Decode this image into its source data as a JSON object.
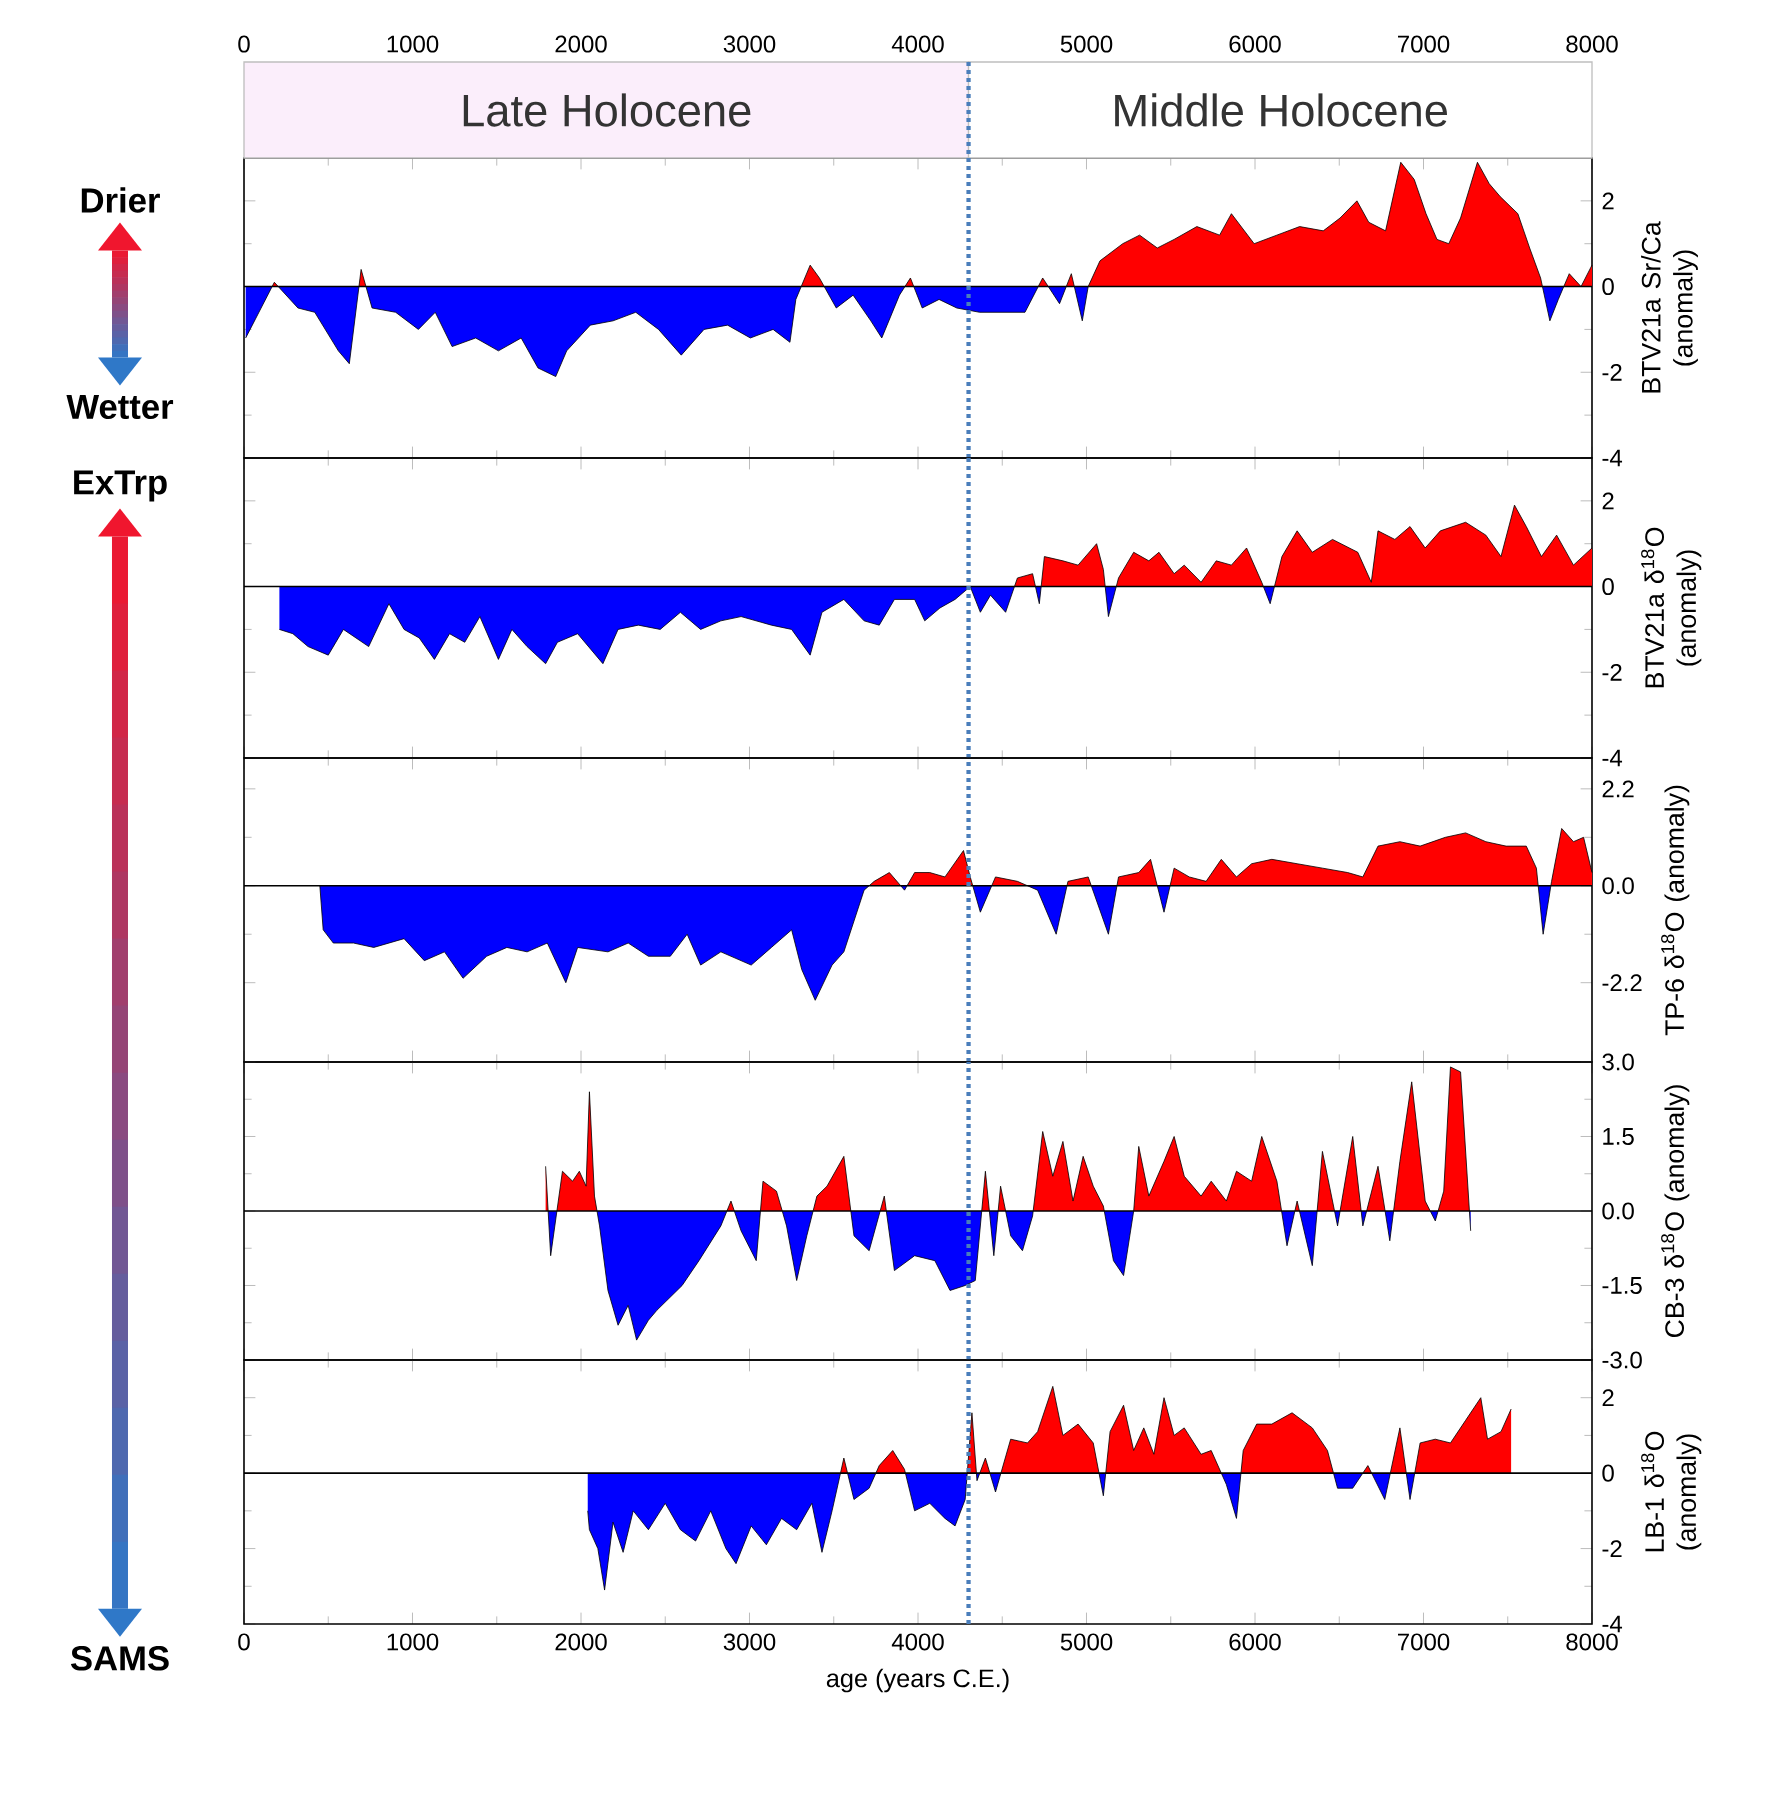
{
  "chart_data": [
    {
      "type": "area",
      "ylabel": "BTV21a Sr/Ca (anomaly)",
      "annotations": [
        "Drier",
        "Wetter",
        "Late Holocene",
        "Middle Holocene"
      ],
      "xlim": [
        0,
        8000
      ],
      "x2lim": [
        0,
        8000
      ],
      "x2ticks": [
        0,
        1000,
        2000,
        3000,
        4000,
        5000,
        6000,
        7000,
        8000
      ],
      "ylim": [
        -4,
        3
      ],
      "yticks": [
        -4,
        -2,
        0,
        2
      ],
      "ref_lines": [
        {
          "axis": "y",
          "value": 0,
          "color": "#000000"
        },
        {
          "axis": "x",
          "value": 4300,
          "color": "#4a7ebb",
          "line_style": "dotted"
        }
      ],
      "x": [
        10,
        180,
        320,
        420,
        560,
        625,
        695,
        760,
        900,
        1035,
        1135,
        1235,
        1375,
        1510,
        1645,
        1745,
        1850,
        1915,
        2055,
        2190,
        2325,
        2460,
        2595,
        2730,
        2870,
        3005,
        3140,
        3240,
        3275,
        3360,
        3415,
        3515,
        3615,
        3720,
        3785,
        3890,
        3955,
        4025,
        4125,
        4230,
        4365,
        4500,
        4635,
        4740,
        4840,
        4910,
        4975,
        5010,
        5080,
        5215,
        5315,
        5420,
        5520,
        5655,
        5790,
        5860,
        5995,
        6130,
        6265,
        6405,
        6505,
        6605,
        6675,
        6775,
        6865,
        6945,
        7015,
        7080,
        7150,
        7220,
        7320,
        7390,
        7455,
        7560,
        7630,
        7695,
        7750,
        7800,
        7865,
        7935,
        8000
      ],
      "series": [
        {
          "values": [
            -1.2,
            0.1,
            -0.5,
            -0.6,
            -1.5,
            -1.8,
            0.4,
            -0.5,
            -0.6,
            -1.0,
            -0.6,
            -1.4,
            -1.2,
            -1.5,
            -1.2,
            -1.9,
            -2.1,
            -1.5,
            -0.9,
            -0.8,
            -0.6,
            -1.0,
            -1.6,
            -1.0,
            -0.9,
            -1.2,
            -1.0,
            -1.3,
            -0.3,
            0.5,
            0.2,
            -0.5,
            -0.2,
            -0.8,
            -1.2,
            -0.2,
            0.2,
            -0.5,
            -0.3,
            -0.5,
            -0.6,
            -0.6,
            -0.6,
            0.2,
            -0.4,
            0.3,
            -0.8,
            0.0,
            0.6,
            1.0,
            1.2,
            0.9,
            1.1,
            1.4,
            1.2,
            1.7,
            1.0,
            1.2,
            1.4,
            1.3,
            1.6,
            2.0,
            1.5,
            1.3,
            2.9,
            2.5,
            1.7,
            1.1,
            1.0,
            1.6,
            2.9,
            2.4,
            2.1,
            1.7,
            0.9,
            0.2,
            -0.8,
            -0.3,
            0.3,
            0.0,
            0.5
          ],
          "colors": [
            "#0000ff",
            "#ff0000",
            "#0000ff",
            "#0000ff",
            "#0000ff",
            "#0000ff",
            "#ff0000",
            "#0000ff",
            "#0000ff",
            "#0000ff",
            "#0000ff",
            "#0000ff",
            "#0000ff",
            "#0000ff",
            "#0000ff",
            "#0000ff",
            "#0000ff",
            "#0000ff",
            "#0000ff",
            "#0000ff",
            "#0000ff",
            "#0000ff",
            "#0000ff",
            "#0000ff",
            "#0000ff",
            "#0000ff",
            "#0000ff",
            "#0000ff",
            "#0000ff",
            "#ff0000",
            "#ff0000",
            "#0000ff",
            "#0000ff",
            "#0000ff",
            "#0000ff",
            "#0000ff",
            "#ff0000",
            "#0000ff",
            "#0000ff",
            "#0000ff",
            "#0000ff",
            "#0000ff",
            "#0000ff",
            "#ff0000",
            "#0000ff",
            "#ff0000",
            "#0000ff",
            "#ff0000",
            "#ff0000",
            "#ff0000",
            "#ff0000",
            "#ff0000",
            "#ff0000",
            "#ff0000",
            "#ff0000",
            "#ff0000",
            "#ff0000",
            "#ff0000",
            "#ff0000",
            "#ff0000",
            "#ff0000",
            "#ff0000",
            "#ff0000",
            "#ff0000",
            "#ff0000",
            "#ff0000",
            "#ff0000",
            "#ff0000",
            "#ff0000",
            "#ff0000",
            "#ff0000",
            "#ff0000",
            "#ff0000",
            "#ff0000",
            "#ff0000",
            "#ff0000",
            "#0000ff",
            "#0000ff",
            "#ff0000",
            "#ff0000",
            "#ff0000"
          ]
        }
      ]
    },
    {
      "type": "area",
      "ylabel": "BTV21a δ$^{18}$O (anomaly)",
      "annotations": [
        "ExTrp"
      ],
      "xlim": [
        0,
        8000
      ],
      "xticks": [
        0,
        1000,
        2000,
        3000,
        4000,
        5000,
        6000,
        7000,
        8000
      ],
      "tick_labels": "y",
      "ylim": [
        -4,
        3
      ],
      "yticks": [
        -4,
        -2,
        0,
        2
      ],
      "ref_lines": [
        {
          "axis": "y",
          "value": 0,
          "color": "#000000"
        },
        {
          "axis": "x",
          "value": 4300,
          "color": "#4a7ebb",
          "line_style": "dotted"
        }
      ],
      "x": [
        210,
        290,
        380,
        500,
        590,
        740,
        860,
        950,
        1040,
        1130,
        1220,
        1310,
        1400,
        1510,
        1590,
        1680,
        1790,
        1860,
        1980,
        2130,
        2220,
        2340,
        2470,
        2590,
        2710,
        2830,
        2950,
        3130,
        3250,
        3360,
        3430,
        3560,
        3680,
        3770,
        3860,
        3980,
        4040,
        4130,
        4220,
        4310,
        4370,
        4430,
        4520,
        4590,
        4680,
        4720,
        4750,
        4860,
        4950,
        5060,
        5100,
        5130,
        5190,
        5280,
        5370,
        5430,
        5520,
        5580,
        5680,
        5770,
        5860,
        5950,
        6040,
        6090,
        6160,
        6250,
        6340,
        6460,
        6610,
        6690,
        6730,
        6830,
        6920,
        7010,
        7100,
        7250,
        7370,
        7460,
        7540,
        7610,
        7700,
        7790,
        7890,
        8000
      ],
      "series": [
        {
          "values": [
            -1.0,
            -1.1,
            -1.4,
            -1.6,
            -1.0,
            -1.4,
            -0.4,
            -1.0,
            -1.2,
            -1.7,
            -1.1,
            -1.3,
            -0.7,
            -1.7,
            -1.0,
            -1.4,
            -1.8,
            -1.3,
            -1.1,
            -1.8,
            -1.0,
            -0.9,
            -1.0,
            -0.6,
            -1.0,
            -0.8,
            -0.7,
            -0.9,
            -1.0,
            -1.6,
            -0.6,
            -0.3,
            -0.8,
            -0.9,
            -0.3,
            -0.3,
            -0.8,
            -0.5,
            -0.3,
            0.0,
            -0.6,
            -0.2,
            -0.6,
            0.2,
            0.3,
            -0.4,
            0.7,
            0.6,
            0.5,
            1.0,
            0.4,
            -0.7,
            0.2,
            0.8,
            0.6,
            0.8,
            0.3,
            0.5,
            0.1,
            0.6,
            0.5,
            0.9,
            0.1,
            -0.4,
            0.7,
            1.3,
            0.8,
            1.1,
            0.8,
            0.1,
            1.3,
            1.1,
            1.4,
            0.9,
            1.3,
            1.5,
            1.2,
            0.7,
            1.9,
            1.4,
            0.7,
            1.2,
            0.5,
            0.9
          ],
          "colors": [
            "#0000ff",
            "#0000ff",
            "#0000ff",
            "#0000ff",
            "#0000ff",
            "#0000ff",
            "#0000ff",
            "#0000ff",
            "#0000ff",
            "#0000ff",
            "#0000ff",
            "#0000ff",
            "#0000ff",
            "#0000ff",
            "#0000ff",
            "#0000ff",
            "#0000ff",
            "#0000ff",
            "#0000ff",
            "#0000ff",
            "#0000ff",
            "#0000ff",
            "#0000ff",
            "#0000ff",
            "#0000ff",
            "#0000ff",
            "#0000ff",
            "#0000ff",
            "#0000ff",
            "#0000ff",
            "#0000ff",
            "#0000ff",
            "#0000ff",
            "#0000ff",
            "#0000ff",
            "#0000ff",
            "#0000ff",
            "#0000ff",
            "#0000ff",
            "#ff0000",
            "#0000ff",
            "#0000ff",
            "#0000ff",
            "#ff0000",
            "#ff0000",
            "#0000ff",
            "#ff0000",
            "#ff0000",
            "#ff0000",
            "#ff0000",
            "#ff0000",
            "#0000ff",
            "#ff0000",
            "#ff0000",
            "#ff0000",
            "#ff0000",
            "#ff0000",
            "#ff0000",
            "#ff0000",
            "#ff0000",
            "#ff0000",
            "#ff0000",
            "#ff0000",
            "#0000ff",
            "#ff0000",
            "#ff0000",
            "#ff0000",
            "#ff0000",
            "#ff0000",
            "#ff0000",
            "#ff0000",
            "#ff0000",
            "#ff0000",
            "#ff0000",
            "#ff0000",
            "#ff0000",
            "#ff0000",
            "#ff0000",
            "#ff0000",
            "#ff0000",
            "#ff0000",
            "#ff0000",
            "#ff0000",
            "#ff0000"
          ]
        }
      ]
    },
    {
      "type": "area",
      "ylabel": "TP-6 δ$^{18}$O (anomaly)",
      "xlim": [
        0,
        8000
      ],
      "xticks": [
        0,
        1000,
        2000,
        3000,
        4000,
        5000,
        6000,
        7000,
        8000
      ],
      "tick_labels": "y",
      "ylim": [
        -4,
        2.9
      ],
      "yticks": [
        {
          "value": -2.2,
          "label": "-2.2"
        },
        {
          "value": 0,
          "label": "0.0"
        },
        {
          "value": 2.2,
          "label": "2.2"
        }
      ],
      "ref_lines": [
        {
          "axis": "y",
          "value": 0,
          "color": "#000000"
        },
        {
          "axis": "x",
          "value": 4300,
          "color": "#4a7ebb",
          "line_style": "dotted"
        }
      ],
      "x": [
        450,
        470,
        530,
        650,
        770,
        950,
        1070,
        1190,
        1300,
        1440,
        1560,
        1680,
        1800,
        1910,
        1980,
        2160,
        2280,
        2400,
        2530,
        2630,
        2710,
        2830,
        3010,
        3130,
        3250,
        3310,
        3390,
        3490,
        3560,
        3620,
        3680,
        3740,
        3830,
        3920,
        3980,
        4070,
        4160,
        4270,
        4310,
        4370,
        4460,
        4590,
        4710,
        4820,
        4890,
        5010,
        5130,
        5190,
        5310,
        5380,
        5460,
        5520,
        5610,
        5710,
        5800,
        5890,
        5980,
        6100,
        6250,
        6400,
        6550,
        6640,
        6730,
        6860,
        6980,
        7130,
        7250,
        7370,
        7490,
        7610,
        7670,
        7710,
        7760,
        7820,
        7890,
        7950,
        8000
      ],
      "series": [
        {
          "values": [
            0.0,
            -1.0,
            -1.3,
            -1.3,
            -1.4,
            -1.2,
            -1.7,
            -1.5,
            -2.1,
            -1.6,
            -1.4,
            -1.5,
            -1.3,
            -2.2,
            -1.4,
            -1.5,
            -1.3,
            -1.6,
            -1.6,
            -1.1,
            -1.8,
            -1.5,
            -1.8,
            -1.4,
            -1.0,
            -1.9,
            -2.6,
            -1.8,
            -1.5,
            -0.8,
            -0.1,
            0.1,
            0.3,
            -0.1,
            0.3,
            0.3,
            0.2,
            0.8,
            0.2,
            -0.6,
            0.2,
            0.1,
            -0.1,
            -1.1,
            0.1,
            0.2,
            -1.1,
            0.2,
            0.3,
            0.6,
            -0.6,
            0.4,
            0.2,
            0.1,
            0.6,
            0.2,
            0.5,
            0.6,
            0.5,
            0.4,
            0.3,
            0.2,
            0.9,
            1.0,
            0.9,
            1.1,
            1.2,
            1.0,
            0.9,
            0.9,
            0.4,
            -1.1,
            0.1,
            1.3,
            1.0,
            1.1,
            0.3
          ],
          "colors": [
            "#ff0000",
            "#0000ff",
            "#0000ff",
            "#0000ff",
            "#0000ff",
            "#0000ff",
            "#0000ff",
            "#0000ff",
            "#0000ff",
            "#0000ff",
            "#0000ff",
            "#0000ff",
            "#0000ff",
            "#0000ff",
            "#0000ff",
            "#0000ff",
            "#0000ff",
            "#0000ff",
            "#0000ff",
            "#0000ff",
            "#0000ff",
            "#0000ff",
            "#0000ff",
            "#0000ff",
            "#0000ff",
            "#0000ff",
            "#0000ff",
            "#0000ff",
            "#0000ff",
            "#0000ff",
            "#0000ff",
            "#ff0000",
            "#ff0000",
            "#0000ff",
            "#ff0000",
            "#ff0000",
            "#ff0000",
            "#ff0000",
            "#ff0000",
            "#0000ff",
            "#ff0000",
            "#ff0000",
            "#0000ff",
            "#0000ff",
            "#ff0000",
            "#ff0000",
            "#0000ff",
            "#ff0000",
            "#ff0000",
            "#ff0000",
            "#0000ff",
            "#ff0000",
            "#ff0000",
            "#ff0000",
            "#ff0000",
            "#ff0000",
            "#ff0000",
            "#ff0000",
            "#ff0000",
            "#ff0000",
            "#ff0000",
            "#ff0000",
            "#ff0000",
            "#ff0000",
            "#ff0000",
            "#ff0000",
            "#ff0000",
            "#ff0000",
            "#ff0000",
            "#ff0000",
            "#ff0000",
            "#0000ff",
            "#ff0000",
            "#ff0000",
            "#ff0000",
            "#ff0000",
            "#ff0000"
          ]
        }
      ]
    },
    {
      "type": "area",
      "ylabel": "CB-3 δ$^{18}$O (anomaly)",
      "xlim": [
        0,
        8000
      ],
      "xticks": [
        0,
        1000,
        2000,
        3000,
        4000,
        5000,
        6000,
        7000,
        8000
      ],
      "tick_labels": "y",
      "ylim": [
        -3,
        3
      ],
      "yticks": [
        {
          "value": -3,
          "label": "-3.0"
        },
        {
          "value": -1.5,
          "label": "-1.5"
        },
        {
          "value": 0,
          "label": "0.0"
        },
        {
          "value": 1.5,
          "label": "1.5"
        },
        {
          "value": 3,
          "label": "3.0"
        }
      ],
      "ref_lines": [
        {
          "axis": "y",
          "value": 0,
          "color": "#000000"
        },
        {
          "axis": "x",
          "value": 4300,
          "color": "#4a7ebb",
          "line_style": "dotted"
        }
      ],
      "x": [
        1790,
        1820,
        1890,
        1950,
        1990,
        2030,
        2050,
        2080,
        2110,
        2160,
        2220,
        2280,
        2330,
        2400,
        2450,
        2600,
        2700,
        2830,
        2890,
        2950,
        3040,
        3080,
        3160,
        3220,
        3280,
        3340,
        3400,
        3460,
        3560,
        3620,
        3710,
        3800,
        3860,
        3980,
        4100,
        4190,
        4280,
        4340,
        4400,
        4450,
        4490,
        4550,
        4620,
        4680,
        4740,
        4800,
        4860,
        4920,
        4980,
        5040,
        5100,
        5160,
        5220,
        5280,
        5310,
        5370,
        5460,
        5520,
        5580,
        5680,
        5740,
        5830,
        5890,
        5980,
        6040,
        6130,
        6190,
        6250,
        6340,
        6400,
        6490,
        6580,
        6640,
        6730,
        6800,
        6860,
        6930,
        7010,
        7070,
        7120,
        7160,
        7220,
        7280
      ],
      "series": [
        {
          "values": [
            0.9,
            -0.9,
            0.8,
            0.6,
            0.8,
            0.5,
            2.4,
            0.3,
            -0.3,
            -1.6,
            -2.3,
            -1.9,
            -2.6,
            -2.2,
            -2.0,
            -1.5,
            -1.0,
            -0.3,
            0.2,
            -0.4,
            -1.0,
            0.6,
            0.4,
            -0.3,
            -1.4,
            -0.5,
            0.3,
            0.5,
            1.1,
            -0.5,
            -0.8,
            0.3,
            -1.2,
            -0.9,
            -1.0,
            -1.6,
            -1.5,
            -1.4,
            0.8,
            -0.9,
            0.5,
            -0.5,
            -0.8,
            -0.1,
            1.6,
            0.7,
            1.4,
            0.2,
            1.1,
            0.5,
            0.1,
            -1.0,
            -1.3,
            0.0,
            1.3,
            0.3,
            1.0,
            1.5,
            0.7,
            0.3,
            0.6,
            0.2,
            0.8,
            0.6,
            1.5,
            0.6,
            -0.7,
            0.2,
            -1.1,
            1.2,
            -0.3,
            1.5,
            -0.3,
            0.9,
            -0.6,
            1.0,
            2.6,
            0.2,
            -0.2,
            0.4,
            2.9,
            2.8,
            -0.4
          ],
          "colors": [
            "#ff0000",
            "#0000ff",
            "#ff0000",
            "#ff0000",
            "#ff0000",
            "#ff0000",
            "#ff0000",
            "#ff0000",
            "#0000ff",
            "#0000ff",
            "#0000ff",
            "#0000ff",
            "#0000ff",
            "#0000ff",
            "#0000ff",
            "#0000ff",
            "#0000ff",
            "#0000ff",
            "#ff0000",
            "#0000ff",
            "#0000ff",
            "#ff0000",
            "#ff0000",
            "#0000ff",
            "#0000ff",
            "#0000ff",
            "#ff0000",
            "#ff0000",
            "#ff0000",
            "#0000ff",
            "#0000ff",
            "#ff0000",
            "#0000ff",
            "#0000ff",
            "#0000ff",
            "#0000ff",
            "#0000ff",
            "#0000ff",
            "#ff0000",
            "#0000ff",
            "#ff0000",
            "#0000ff",
            "#0000ff",
            "#0000ff",
            "#ff0000",
            "#ff0000",
            "#ff0000",
            "#ff0000",
            "#ff0000",
            "#ff0000",
            "#ff0000",
            "#0000ff",
            "#0000ff",
            "#ff0000",
            "#ff0000",
            "#ff0000",
            "#ff0000",
            "#ff0000",
            "#ff0000",
            "#ff0000",
            "#ff0000",
            "#ff0000",
            "#ff0000",
            "#ff0000",
            "#ff0000",
            "#ff0000",
            "#0000ff",
            "#ff0000",
            "#0000ff",
            "#ff0000",
            "#0000ff",
            "#ff0000",
            "#0000ff",
            "#ff0000",
            "#0000ff",
            "#ff0000",
            "#ff0000",
            "#ff0000",
            "#0000ff",
            "#ff0000",
            "#ff0000",
            "#ff0000",
            "#0000ff"
          ]
        }
      ]
    },
    {
      "type": "area",
      "ylabel": "LB-1 δ$^{18}$O (anomaly)",
      "xlabel": "age (years C.E.)",
      "annotations": [
        "SAMS"
      ],
      "xlim": [
        0,
        8000
      ],
      "xticks": [
        0,
        1000,
        2000,
        3000,
        4000,
        5000,
        6000,
        7000,
        8000
      ],
      "ylim": [
        -4,
        3
      ],
      "yticks": [
        -4,
        -2,
        0,
        2
      ],
      "ref_lines": [
        {
          "axis": "y",
          "value": 0,
          "color": "#000000"
        },
        {
          "axis": "x",
          "value": 4300,
          "color": "#4a7ebb",
          "line_style": "dotted"
        }
      ],
      "x": [
        2040,
        2050,
        2100,
        2140,
        2190,
        2250,
        2310,
        2400,
        2500,
        2590,
        2680,
        2770,
        2860,
        2920,
        3010,
        3100,
        3190,
        3280,
        3370,
        3430,
        3490,
        3560,
        3620,
        3710,
        3770,
        3850,
        3920,
        3980,
        4070,
        4160,
        4220,
        4280,
        4320,
        4350,
        4400,
        4460,
        4550,
        4650,
        4710,
        4800,
        4860,
        4950,
        5040,
        5100,
        5140,
        5220,
        5280,
        5340,
        5400,
        5460,
        5520,
        5580,
        5680,
        5740,
        5830,
        5890,
        5930,
        6010,
        6100,
        6220,
        6340,
        6430,
        6490,
        6580,
        6670,
        6770,
        6860,
        6920,
        6980,
        7070,
        7160,
        7250,
        7340,
        7380,
        7460,
        7520
      ],
      "series": [
        {
          "values": [
            -1.0,
            -1.5,
            -2.0,
            -3.1,
            -1.3,
            -2.1,
            -1.0,
            -1.5,
            -0.8,
            -1.5,
            -1.8,
            -1.0,
            -2.0,
            -2.4,
            -1.4,
            -1.9,
            -1.2,
            -1.5,
            -0.8,
            -2.1,
            -1.0,
            0.4,
            -0.7,
            -0.4,
            0.2,
            0.6,
            0.1,
            -1.0,
            -0.8,
            -1.2,
            -1.4,
            -0.7,
            1.6,
            -0.2,
            0.4,
            -0.5,
            0.9,
            0.8,
            1.1,
            2.3,
            1.0,
            1.3,
            0.8,
            -0.6,
            1.1,
            1.8,
            0.6,
            1.2,
            0.5,
            2.0,
            1.0,
            1.2,
            0.5,
            0.6,
            -0.3,
            -1.2,
            0.6,
            1.3,
            1.3,
            1.6,
            1.2,
            0.6,
            -0.4,
            -0.4,
            0.2,
            -0.7,
            1.2,
            -0.7,
            0.8,
            0.9,
            0.8,
            1.4,
            2.0,
            0.9,
            1.1,
            1.7
          ],
          "colors": [
            "#0000ff",
            "#0000ff",
            "#0000ff",
            "#0000ff",
            "#0000ff",
            "#0000ff",
            "#0000ff",
            "#0000ff",
            "#0000ff",
            "#0000ff",
            "#0000ff",
            "#0000ff",
            "#0000ff",
            "#0000ff",
            "#0000ff",
            "#0000ff",
            "#0000ff",
            "#0000ff",
            "#0000ff",
            "#0000ff",
            "#0000ff",
            "#ff0000",
            "#0000ff",
            "#0000ff",
            "#ff0000",
            "#ff0000",
            "#ff0000",
            "#0000ff",
            "#0000ff",
            "#0000ff",
            "#0000ff",
            "#0000ff",
            "#ff0000",
            "#0000ff",
            "#ff0000",
            "#0000ff",
            "#ff0000",
            "#ff0000",
            "#ff0000",
            "#ff0000",
            "#ff0000",
            "#ff0000",
            "#ff0000",
            "#0000ff",
            "#ff0000",
            "#ff0000",
            "#ff0000",
            "#ff0000",
            "#ff0000",
            "#ff0000",
            "#ff0000",
            "#ff0000",
            "#ff0000",
            "#ff0000",
            "#0000ff",
            "#0000ff",
            "#ff0000",
            "#ff0000",
            "#ff0000",
            "#ff0000",
            "#ff0000",
            "#ff0000",
            "#0000ff",
            "#0000ff",
            "#ff0000",
            "#0000ff",
            "#ff0000",
            "#0000ff",
            "#ff0000",
            "#ff0000",
            "#ff0000",
            "#ff0000",
            "#ff0000",
            "#ff0000",
            "#ff0000",
            "#ff0000"
          ]
        }
      ]
    }
  ]
}
